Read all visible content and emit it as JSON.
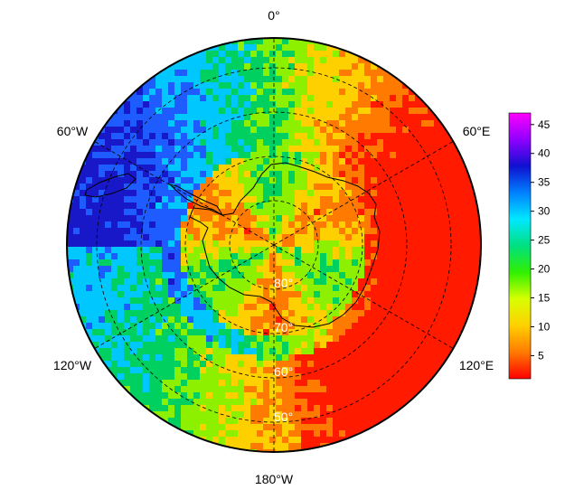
{
  "map": {
    "projection": "south polar stereographic",
    "longitude_labels": {
      "top": "0°",
      "upper_left": "60°W",
      "upper_right": "60°E",
      "lower_left": "120°W",
      "lower_right": "120°E",
      "bottom": "180°W"
    },
    "latitude_labels": [
      "80°",
      "70°",
      "60°",
      "50°"
    ],
    "colorbar": {
      "ticks": [
        "45",
        "40",
        "35",
        "30",
        "25",
        "20",
        "15",
        "10",
        "5"
      ],
      "range": [
        1,
        47
      ],
      "colors": [
        "#ff0000",
        "#ff7a00",
        "#ffd000",
        "#d8ff00",
        "#30f000",
        "#00e080",
        "#00e8ff",
        "#0080ff",
        "#1010d0",
        "#9000ff",
        "#ff00ff"
      ]
    },
    "field_colors": {
      "very_low": "#ff1a00",
      "low": "#ff7a00",
      "mid_low": "#ffd000",
      "mid": "#8cf000",
      "mid_high": "#00d060",
      "high": "#00c8ff",
      "very_high": "#1e5cff",
      "extreme": "#1818c8",
      "coast": "#000000",
      "grid": "#000000"
    }
  }
}
